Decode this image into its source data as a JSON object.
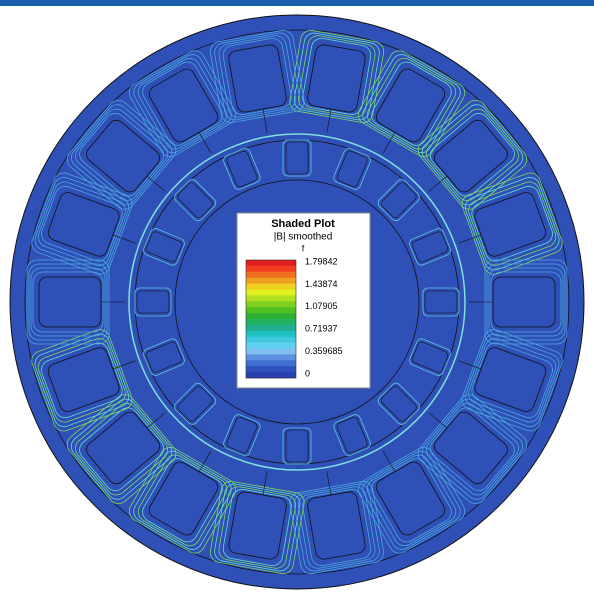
{
  "legend": {
    "title": "Shaded Plot",
    "subtitle": "|B| smoothed",
    "unit": "f",
    "labels": [
      "1.79842",
      "1.43874",
      "1.07905",
      "0.71937",
      "0.359685",
      "0"
    ]
  }
}
